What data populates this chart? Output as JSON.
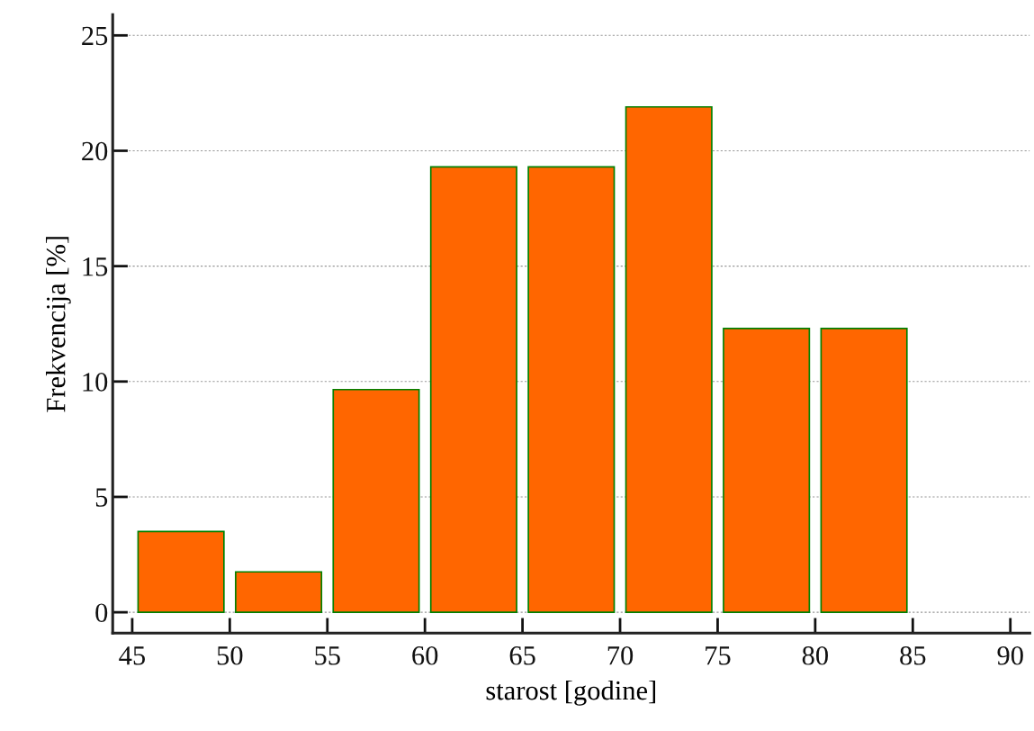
{
  "chart_data": {
    "type": "histogram",
    "xlabel": "starost [godine]",
    "ylabel": "Frekvencija [%]",
    "bins": [
      45,
      50,
      55,
      60,
      65,
      70,
      75,
      80,
      85
    ],
    "values": [
      3.5,
      1.75,
      9.65,
      19.3,
      19.3,
      21.9,
      12.3,
      12.3
    ],
    "color": "#ff6600",
    "xlim": [
      44,
      91
    ],
    "xticks": [
      45,
      50,
      55,
      60,
      65,
      70,
      75,
      80,
      85,
      90
    ],
    "ylim": [
      -0.9,
      25.9
    ],
    "yticks": [
      0,
      5,
      10,
      15,
      20,
      25
    ],
    "grid": "y"
  }
}
